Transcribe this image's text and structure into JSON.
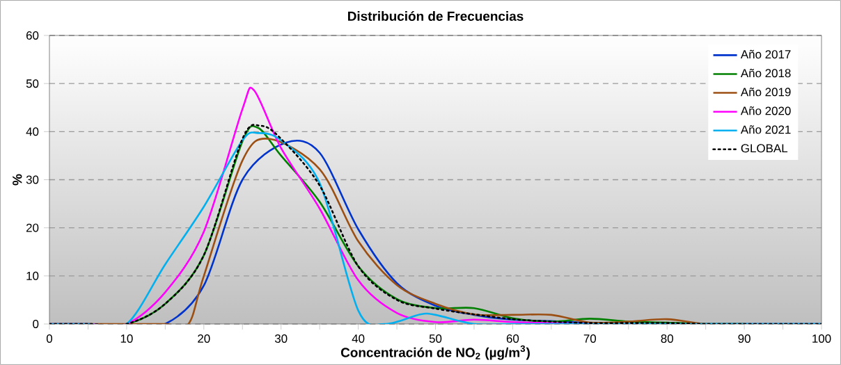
{
  "chart_data": {
    "type": "line",
    "title": "Distribución de Frecuencias",
    "xlabel": "Concentración de NO$_{2}$ (µg/m$^{3}$)",
    "ylabel": "%",
    "xlim": [
      0,
      100
    ],
    "ylim": [
      0,
      60
    ],
    "xticks": [
      0,
      {
        "value": 5,
        "label": null
      },
      10,
      {
        "value": 15,
        "label": null
      },
      20,
      {
        "value": 25,
        "label": null
      },
      30,
      {
        "value": 35,
        "label": null
      },
      40,
      {
        "value": 45,
        "label": null
      },
      50,
      {
        "value": 55,
        "label": null
      },
      60,
      {
        "value": 65,
        "label": null
      },
      70,
      {
        "value": 75,
        "label": null
      },
      80,
      {
        "value": 85,
        "label": null
      },
      90,
      {
        "value": 95,
        "label": null
      },
      100
    ],
    "yticks": [
      0,
      10,
      20,
      30,
      40,
      50,
      60
    ],
    "grid": "y",
    "legend": "top right",
    "marker": "none",
    "series": [
      {
        "name": "Año 2017",
        "color": "#0033cc",
        "line_style": "solid",
        "x": [
          10,
          15,
          20,
          25,
          30.6,
          35,
          40,
          45,
          50,
          55,
          60,
          65,
          70,
          75,
          80,
          85,
          90,
          95,
          100
        ],
        "values": [
          0,
          0,
          8,
          30,
          37.7,
          35.6,
          19.7,
          8.5,
          3.8,
          1.9,
          0.9,
          0.6,
          0.2,
          0,
          0,
          0,
          0,
          0,
          0
        ]
      },
      {
        "name": "Año 2018",
        "color": "#008000",
        "line_style": "solid",
        "x": [
          0,
          5,
          10,
          15,
          20,
          25,
          27,
          30,
          35,
          40,
          45,
          50,
          55,
          60,
          65,
          70,
          75,
          80,
          85,
          90
        ],
        "values": [
          0,
          0,
          0,
          4.2,
          14.3,
          38,
          40.8,
          35,
          25.4,
          12,
          5.2,
          3.3,
          3.3,
          1.2,
          0.5,
          1.1,
          0.5,
          0.3,
          0,
          0
        ]
      },
      {
        "name": "Año 2019",
        "color": "#9c4f12",
        "line_style": "solid",
        "x": [
          0,
          5,
          10,
          15,
          18,
          20,
          25,
          28.5,
          35,
          40,
          45,
          50,
          55,
          60,
          65,
          70,
          75,
          80,
          85,
          90
        ],
        "values": [
          0,
          0,
          0,
          0,
          0,
          10,
          34,
          38.5,
          32.2,
          17.2,
          8.1,
          4.2,
          2,
          1.9,
          1.9,
          0.3,
          0.5,
          1.0,
          0,
          0
        ]
      },
      {
        "name": "Año 2020",
        "color": "#ff00ff",
        "line_style": "solid",
        "x": [
          0,
          5,
          10,
          15,
          20,
          25,
          26.5,
          30,
          35,
          40,
          45,
          50,
          55,
          60,
          65,
          70
        ],
        "values": [
          0,
          0,
          0,
          6.6,
          19.2,
          44.7,
          48.6,
          36.6,
          24,
          9.1,
          2.3,
          0.4,
          0.9,
          0.4,
          0.2,
          0
        ]
      },
      {
        "name": "Año 2021",
        "color": "#00b0f0",
        "line_style": "solid",
        "x": [
          0,
          5,
          10,
          15,
          20,
          25,
          27,
          30,
          35,
          40,
          43.5,
          48,
          50,
          55,
          60,
          65,
          70,
          75,
          80,
          85,
          90,
          95,
          100
        ],
        "values": [
          0,
          0,
          0,
          12.4,
          24.4,
          38.2,
          39.7,
          38.2,
          29.3,
          2.8,
          0,
          2,
          1.9,
          0,
          0,
          0,
          0,
          0,
          0,
          0,
          0,
          0,
          0
        ]
      },
      {
        "name": "GLOBAL",
        "color": "#000000",
        "line_style": "dotted",
        "x": [
          0,
          5,
          10,
          15,
          20,
          25,
          27.4,
          30,
          35,
          40,
          45,
          50,
          55,
          60,
          65,
          70,
          75,
          80,
          85,
          90,
          95,
          100
        ],
        "values": [
          0,
          0,
          0,
          4.2,
          14.3,
          38.5,
          41.2,
          38.5,
          28.8,
          12,
          5,
          3.2,
          2,
          1.0,
          0.5,
          0.2,
          0.2,
          0.2,
          0,
          0,
          0,
          0
        ]
      }
    ]
  }
}
